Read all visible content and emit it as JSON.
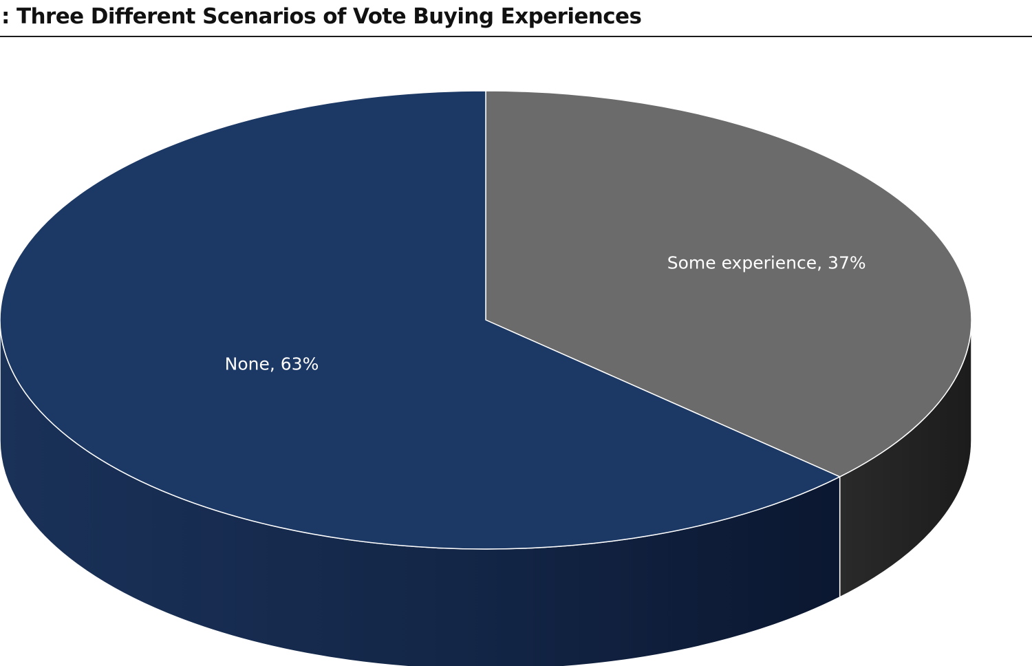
{
  "chart_data": {
    "type": "pie",
    "title": ": Three Different Scenarios of Vote Buying Experiences",
    "style": "3d",
    "slices": [
      {
        "label": "Some experience",
        "value": 37,
        "display": "Some experience, 37%",
        "color": "#6b6b6b",
        "side_color": "#262626"
      },
      {
        "label": "None",
        "value": 63,
        "display": "None, 63%",
        "color": "#1c3864",
        "side_color": "#12223f"
      }
    ]
  }
}
